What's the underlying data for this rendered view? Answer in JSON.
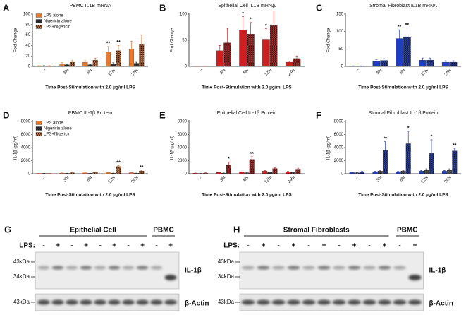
{
  "chart_data": [
    {
      "type": "bar",
      "panel": "A",
      "title": "PBMC IL1B mRNA",
      "ylabel": "Fold Change",
      "xlabel": "Time Post-Stimulation with 2.0 µg/ml LPS",
      "categories": [
        "--",
        "3hr",
        "6hr",
        "12hr",
        "24hr"
      ],
      "ylim": [
        0,
        100
      ],
      "yticks": [
        0,
        20,
        40,
        60,
        80,
        100
      ],
      "legend": "upper left",
      "series": [
        {
          "name": "LPS alone",
          "color": "#e8792f",
          "hatch": "none",
          "values": [
            1,
            5,
            8,
            28,
            33
          ],
          "errors": [
            0.5,
            2,
            3,
            10,
            15
          ],
          "significance": [
            null,
            null,
            null,
            "**",
            null
          ]
        },
        {
          "name": "Nigericin alone",
          "color": "#333333",
          "hatch": "checker",
          "values": [
            1,
            3,
            3,
            5,
            6
          ],
          "errors": [
            0.5,
            1,
            1,
            2,
            2
          ],
          "significance": [
            null,
            null,
            null,
            null,
            null
          ]
        },
        {
          "name": "LPS+Nigericin",
          "color": "#e8792f",
          "hatch": "checker",
          "values": [
            1,
            8,
            12,
            30,
            42
          ],
          "errors": [
            0.5,
            3,
            4,
            10,
            18
          ],
          "significance": [
            null,
            null,
            null,
            "**",
            null
          ]
        }
      ]
    },
    {
      "type": "bar",
      "panel": "B",
      "title": "Epithelial Cell IL1B mRNA",
      "ylabel": "Fold Change",
      "xlabel": "Time Post-Stimulation with 2.0 µg/ml LPS",
      "categories": [
        "--",
        "3hr",
        "6hr",
        "12hr",
        "24hr"
      ],
      "ylim": [
        0,
        100
      ],
      "yticks": [
        0,
        50,
        100
      ],
      "series": [
        {
          "color": "#cc1f1f",
          "hatch": "none",
          "values": [
            0,
            30,
            70,
            52,
            8
          ],
          "errors": [
            0,
            10,
            25,
            20,
            2
          ],
          "significance": [
            null,
            null,
            "*",
            "*",
            null
          ]
        },
        {
          "color": "#cc1f1f",
          "hatch": "checker",
          "values": [
            0,
            45,
            62,
            78,
            15
          ],
          "errors": [
            0,
            28,
            22,
            28,
            5
          ],
          "significance": [
            null,
            null,
            "*",
            "*",
            null
          ]
        }
      ]
    },
    {
      "type": "bar",
      "panel": "C",
      "title": "Stromal Fibroblast IL1B mRNA",
      "ylabel": "Fold Change",
      "xlabel": "Time Post-Stimulation with 2.0 µg/ml LPS",
      "categories": [
        "--",
        "3hr",
        "6hr",
        "12hr",
        "24hr"
      ],
      "ylim": [
        0,
        150
      ],
      "yticks": [
        0,
        50,
        100,
        150
      ],
      "series": [
        {
          "color": "#1f3fbf",
          "hatch": "none",
          "values": [
            1,
            15,
            80,
            18,
            12
          ],
          "errors": [
            0.5,
            5,
            25,
            6,
            4
          ],
          "significance": [
            null,
            null,
            "**",
            null,
            null
          ]
        },
        {
          "color": "#1f3fbf",
          "hatch": "checker",
          "values": [
            1,
            17,
            85,
            18,
            12
          ],
          "errors": [
            0.5,
            5,
            25,
            6,
            4
          ],
          "significance": [
            null,
            null,
            "**",
            null,
            null
          ]
        }
      ]
    },
    {
      "type": "bar",
      "panel": "D",
      "title": "PBMC IL-1β Protein",
      "ylabel": "IL-1β (pg/ml)",
      "xlabel": "Time Post-Stimulation with 2.0 µg/ml LPS",
      "categories": [
        "--",
        "3hr",
        "6hr",
        "12hr",
        "24hr"
      ],
      "ylim": [
        0,
        8000
      ],
      "yticks": [
        0,
        2000,
        4000,
        6000,
        8000
      ],
      "legend": "upper left",
      "series": [
        {
          "name": "LPS alone",
          "color": "#e8792f",
          "hatch": "none",
          "values": [
            50,
            100,
            120,
            150,
            150
          ],
          "errors": [
            20,
            30,
            30,
            40,
            40
          ],
          "significance": [
            null,
            null,
            null,
            null,
            null
          ]
        },
        {
          "name": "Nigericin alone",
          "color": "#333333",
          "hatch": "checker",
          "values": [
            50,
            60,
            60,
            80,
            80
          ],
          "errors": [
            20,
            20,
            20,
            20,
            20
          ],
          "significance": [
            null,
            null,
            null,
            null,
            null
          ]
        },
        {
          "name": "LPS+Nigericin",
          "color": "#e8792f",
          "hatch": "checker",
          "values": [
            50,
            150,
            200,
            1100,
            400
          ],
          "errors": [
            20,
            40,
            50,
            150,
            100
          ],
          "significance": [
            null,
            null,
            null,
            "**",
            "**"
          ]
        }
      ]
    },
    {
      "type": "bar",
      "panel": "E",
      "title": "Epithelial Cell IL-1β Protein",
      "ylabel": "IL-1β (pg/ml)",
      "xlabel": "Time Post-Stimulation with 2.0 µg/ml LPS",
      "categories": [
        "--",
        "3hr",
        "6hr",
        "12hr",
        "24hr"
      ],
      "ylim": [
        0,
        8000
      ],
      "yticks": [
        0,
        2000,
        4000,
        6000,
        8000
      ],
      "series": [
        {
          "color": "#cc1f1f",
          "hatch": "none",
          "values": [
            80,
            200,
            250,
            400,
            300
          ],
          "errors": [
            20,
            50,
            50,
            80,
            60
          ],
          "significance": [
            null,
            null,
            null,
            null,
            null
          ]
        },
        {
          "color": "#555555",
          "hatch": "checker",
          "values": [
            50,
            100,
            150,
            200,
            200
          ],
          "errors": [
            20,
            30,
            40,
            50,
            50
          ],
          "significance": [
            null,
            null,
            null,
            null,
            null
          ]
        },
        {
          "color": "#cc1f1f",
          "hatch": "checker",
          "values": [
            100,
            1300,
            2200,
            800,
            700
          ],
          "errors": [
            30,
            500,
            400,
            100,
            150
          ],
          "significance": [
            null,
            "*",
            "**",
            null,
            null
          ]
        }
      ]
    },
    {
      "type": "bar",
      "panel": "F",
      "title": "Stromal Fibroblast IL-1β Protein",
      "ylabel": "IL-1β (pg/ml)",
      "xlabel": "Time Post-Stimulation with 2.0 µg/ml LPS",
      "categories": [
        "--",
        "3hr",
        "6hr",
        "12hr",
        "24hr"
      ],
      "ylim": [
        0,
        8000
      ],
      "yticks": [
        0,
        2000,
        4000,
        6000,
        8000
      ],
      "series": [
        {
          "color": "#1f3fbf",
          "hatch": "none",
          "values": [
            200,
            300,
            300,
            400,
            400
          ],
          "errors": [
            50,
            80,
            80,
            100,
            100
          ],
          "significance": [
            null,
            null,
            null,
            null,
            null
          ]
        },
        {
          "color": "#555555",
          "hatch": "checker",
          "values": [
            150,
            400,
            400,
            600,
            600
          ],
          "errors": [
            50,
            100,
            100,
            150,
            150
          ],
          "significance": [
            null,
            null,
            null,
            null,
            null
          ]
        },
        {
          "color": "#1f3fbf",
          "hatch": "checker",
          "values": [
            300,
            3600,
            4600,
            3100,
            3500
          ],
          "errors": [
            80,
            1300,
            1900,
            2100,
            400
          ],
          "significance": [
            null,
            "**",
            "*",
            "*",
            "**"
          ]
        }
      ]
    }
  ],
  "blots": [
    {
      "panel": "G",
      "groups": [
        "Epithelial Cell",
        "PBMC"
      ],
      "lps_label": "LPS:",
      "lanes": [
        "-",
        "+",
        "-",
        "+",
        "-",
        "+",
        "-",
        "+",
        "-",
        "+"
      ],
      "markers": [
        "43kDa",
        "34kDa",
        "43kDa"
      ],
      "rows": [
        "IL-1β",
        "β-Actin"
      ]
    },
    {
      "panel": "H",
      "groups": [
        "Stromal Fibroblasts",
        "PBMC"
      ],
      "lps_label": "LPS:",
      "lanes": [
        "-",
        "+",
        "-",
        "+",
        "-",
        "+",
        "-",
        "+",
        "-",
        "+",
        "-",
        "+"
      ],
      "markers": [
        "43kDa",
        "34kDa",
        "43kDa"
      ],
      "rows": [
        "IL-1β",
        "β-Actin"
      ]
    }
  ]
}
